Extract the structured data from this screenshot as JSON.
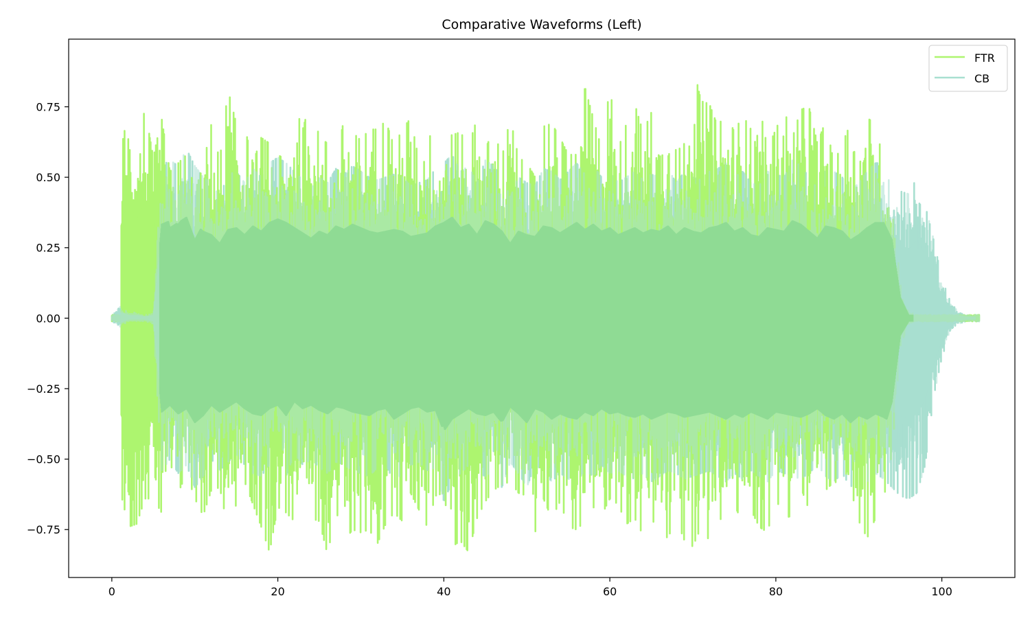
{
  "chart_data": {
    "type": "line",
    "title": "Comparative Waveforms (Left)",
    "xlabel": "",
    "ylabel": "",
    "xlim": [
      -5.2,
      108.8
    ],
    "ylim": [
      -0.92,
      0.99
    ],
    "xticks": [
      0,
      20,
      40,
      60,
      80,
      100
    ],
    "xtick_labels": [
      "0",
      "20",
      "40",
      "60",
      "80",
      "100"
    ],
    "yticks": [
      -0.75,
      -0.5,
      -0.25,
      0.0,
      0.25,
      0.5,
      0.75
    ],
    "ytick_labels": [
      "−0.75",
      "−0.50",
      "−0.25",
      "0.00",
      "0.25",
      "0.50",
      "0.75"
    ],
    "grid": false,
    "legend_position": "upper right",
    "series": [
      {
        "name": "FTR",
        "color": "#adf56f",
        "alpha": 1.0,
        "start": 1.1,
        "end": 96.5,
        "description": "Audio waveform envelope, peak amplitude per second (positive / negative)",
        "envelope_t": [
          1,
          2,
          3,
          4,
          5,
          6,
          7,
          8,
          9,
          10,
          11,
          12,
          13,
          14,
          15,
          16,
          17,
          18,
          19,
          20,
          21,
          22,
          23,
          24,
          25,
          26,
          27,
          28,
          29,
          30,
          31,
          32,
          33,
          34,
          35,
          36,
          37,
          38,
          39,
          40,
          41,
          42,
          43,
          44,
          45,
          46,
          47,
          48,
          49,
          50,
          51,
          52,
          53,
          54,
          55,
          56,
          57,
          58,
          59,
          60,
          61,
          62,
          63,
          64,
          65,
          66,
          67,
          68,
          69,
          70,
          71,
          72,
          73,
          74,
          75,
          76,
          77,
          78,
          79,
          80,
          81,
          82,
          83,
          84,
          85,
          86,
          87,
          88,
          89,
          90,
          91,
          92,
          93,
          94,
          95,
          96
        ],
        "envelope_pos": [
          0.58,
          0.74,
          0.63,
          0.74,
          0.57,
          0.71,
          0.52,
          0.55,
          0.58,
          0.45,
          0.54,
          0.69,
          0.56,
          0.81,
          0.69,
          0.68,
          0.55,
          0.64,
          0.62,
          0.58,
          0.56,
          0.76,
          0.67,
          0.78,
          0.64,
          0.62,
          0.56,
          0.71,
          0.66,
          0.63,
          0.67,
          0.67,
          0.7,
          0.61,
          0.67,
          0.71,
          0.56,
          0.68,
          0.58,
          0.64,
          0.65,
          0.66,
          0.61,
          0.71,
          0.6,
          0.67,
          0.57,
          0.71,
          0.57,
          0.55,
          0.5,
          0.68,
          0.69,
          0.64,
          0.58,
          0.58,
          0.82,
          0.71,
          0.6,
          0.82,
          0.6,
          0.69,
          0.76,
          0.66,
          0.73,
          0.67,
          0.73,
          0.59,
          0.62,
          0.9,
          0.77,
          0.76,
          0.68,
          0.73,
          0.66,
          0.72,
          0.67,
          0.76,
          0.6,
          0.67,
          0.74,
          0.64,
          0.74,
          0.75,
          0.62,
          0.7,
          0.55,
          0.62,
          0.69,
          0.66,
          0.71,
          0.69,
          0.55,
          0.45,
          0.12,
          0.02
        ],
        "envelope_neg": [
          -0.61,
          -0.74,
          -0.73,
          -0.64,
          -0.64,
          -0.69,
          -0.63,
          -0.62,
          -0.55,
          -0.64,
          -0.7,
          -0.61,
          -0.6,
          -0.75,
          -0.66,
          -0.58,
          -0.66,
          -0.74,
          -0.83,
          -0.67,
          -0.69,
          -0.72,
          -0.78,
          -0.71,
          -0.72,
          -0.84,
          -0.68,
          -0.79,
          -0.75,
          -0.76,
          -0.75,
          -0.8,
          -0.73,
          -0.69,
          -0.72,
          -0.62,
          -0.68,
          -0.74,
          -0.63,
          -0.62,
          -0.81,
          -0.79,
          -0.83,
          -0.71,
          -0.65,
          -0.61,
          -0.59,
          -0.58,
          -0.62,
          -0.63,
          -0.76,
          -0.64,
          -0.71,
          -0.65,
          -0.74,
          -0.75,
          -0.72,
          -0.67,
          -0.7,
          -0.64,
          -0.66,
          -0.73,
          -0.71,
          -0.77,
          -0.71,
          -0.76,
          -0.78,
          -0.71,
          -0.79,
          -0.81,
          -0.74,
          -0.79,
          -0.72,
          -0.7,
          -0.66,
          -0.73,
          -0.68,
          -0.74,
          -0.76,
          -0.64,
          -0.71,
          -0.7,
          -0.6,
          -0.68,
          -0.65,
          -0.61,
          -0.58,
          -0.59,
          -0.79,
          -0.72,
          -0.78,
          -0.71,
          -0.64,
          -0.48,
          -0.1,
          -0.02
        ]
      },
      {
        "name": "CB",
        "color": "#a8dfd0",
        "alpha": 0.9,
        "start": 0.0,
        "end": 104.0,
        "description": "Audio waveform envelope, peak amplitude per second (positive / negative)",
        "envelope_t": [
          0,
          1,
          2,
          3,
          4,
          5,
          6,
          7,
          8,
          9,
          10,
          11,
          12,
          13,
          14,
          15,
          16,
          17,
          18,
          19,
          20,
          21,
          22,
          23,
          24,
          25,
          26,
          27,
          28,
          29,
          30,
          31,
          32,
          33,
          34,
          35,
          36,
          37,
          38,
          39,
          40,
          41,
          42,
          43,
          44,
          45,
          46,
          47,
          48,
          49,
          50,
          51,
          52,
          53,
          54,
          55,
          56,
          57,
          58,
          59,
          60,
          61,
          62,
          63,
          64,
          65,
          66,
          67,
          68,
          69,
          70,
          71,
          72,
          73,
          74,
          75,
          76,
          77,
          78,
          79,
          80,
          81,
          82,
          83,
          84,
          85,
          86,
          87,
          88,
          89,
          90,
          91,
          92,
          93,
          94,
          95,
          96,
          97,
          98,
          99,
          100,
          101,
          102,
          103,
          104
        ],
        "envelope_pos": [
          0.01,
          0.04,
          0.02,
          0.02,
          0.01,
          0.02,
          0.54,
          0.56,
          0.54,
          0.6,
          0.54,
          0.5,
          0.48,
          0.43,
          0.51,
          0.52,
          0.48,
          0.53,
          0.5,
          0.55,
          0.57,
          0.55,
          0.52,
          0.49,
          0.46,
          0.5,
          0.48,
          0.53,
          0.51,
          0.54,
          0.52,
          0.5,
          0.49,
          0.5,
          0.51,
          0.5,
          0.47,
          0.48,
          0.49,
          0.53,
          0.55,
          0.58,
          0.52,
          0.54,
          0.48,
          0.56,
          0.54,
          0.5,
          0.43,
          0.5,
          0.48,
          0.47,
          0.53,
          0.52,
          0.49,
          0.52,
          0.55,
          0.51,
          0.54,
          0.5,
          0.52,
          0.48,
          0.5,
          0.52,
          0.49,
          0.51,
          0.5,
          0.53,
          0.48,
          0.52,
          0.5,
          0.49,
          0.52,
          0.53,
          0.55,
          0.5,
          0.52,
          0.48,
          0.47,
          0.52,
          0.51,
          0.5,
          0.56,
          0.54,
          0.5,
          0.46,
          0.53,
          0.52,
          0.5,
          0.45,
          0.48,
          0.52,
          0.55,
          0.55,
          0.45,
          0.45,
          0.44,
          0.5,
          0.4,
          0.28,
          0.14,
          0.06,
          0.02,
          0.01,
          0.01
        ],
        "envelope_neg": [
          -0.01,
          -0.03,
          -0.01,
          -0.01,
          -0.01,
          -0.02,
          -0.54,
          -0.5,
          -0.55,
          -0.52,
          -0.6,
          -0.56,
          -0.5,
          -0.54,
          -0.51,
          -0.48,
          -0.52,
          -0.55,
          -0.56,
          -0.52,
          -0.5,
          -0.56,
          -0.48,
          -0.52,
          -0.5,
          -0.53,
          -0.55,
          -0.51,
          -0.52,
          -0.54,
          -0.55,
          -0.56,
          -0.53,
          -0.52,
          -0.58,
          -0.55,
          -0.52,
          -0.51,
          -0.54,
          -0.53,
          -0.65,
          -0.58,
          -0.55,
          -0.52,
          -0.55,
          -0.56,
          -0.54,
          -0.6,
          -0.51,
          -0.55,
          -0.6,
          -0.52,
          -0.54,
          -0.58,
          -0.55,
          -0.57,
          -0.58,
          -0.54,
          -0.56,
          -0.52,
          -0.55,
          -0.54,
          -0.56,
          -0.57,
          -0.55,
          -0.58,
          -0.56,
          -0.54,
          -0.55,
          -0.57,
          -0.56,
          -0.55,
          -0.54,
          -0.56,
          -0.58,
          -0.55,
          -0.57,
          -0.54,
          -0.56,
          -0.58,
          -0.54,
          -0.55,
          -0.56,
          -0.57,
          -0.55,
          -0.52,
          -0.56,
          -0.58,
          -0.55,
          -0.6,
          -0.56,
          -0.58,
          -0.55,
          -0.57,
          -0.6,
          -0.63,
          -0.64,
          -0.62,
          -0.52,
          -0.28,
          -0.14,
          -0.05,
          -0.02,
          -0.01,
          -0.01
        ]
      }
    ]
  },
  "legend": {
    "items": [
      {
        "label": "FTR",
        "color": "#adf56f"
      },
      {
        "label": "CB",
        "color": "#a8dfd0"
      }
    ]
  }
}
